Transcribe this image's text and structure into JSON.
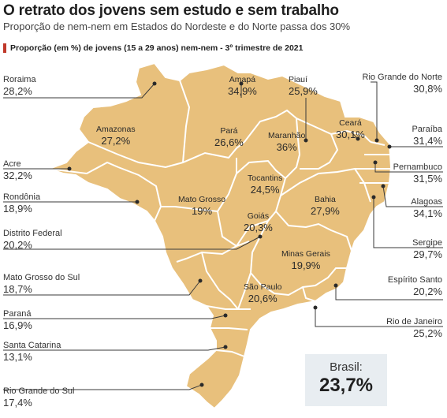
{
  "header": {
    "title": "O retrato dos jovens sem estudo e sem trabalho",
    "subtitle": "Proporção de nem-nem em Estados do Nordeste e do Norte passa dos 30%",
    "legend": "Proporção (em %) de jovens (15 a 29 anos) nem-nem - 3º trimestre de 2021"
  },
  "map": {
    "fill_color": "#e8c07c",
    "border_color": "#ffffff",
    "leader_color": "#3a3a3a",
    "states": {
      "roraima": {
        "name": "Roraima",
        "value": "28,2%"
      },
      "amapa": {
        "name": "Amapá",
        "value": "34,9%"
      },
      "piaui": {
        "name": "Piauí",
        "value": "25,9%"
      },
      "rio_grande_do_norte": {
        "name": "Rio Grande do Norte",
        "value": "30,8%"
      },
      "amazonas": {
        "name": "Amazonas",
        "value": "27,2%"
      },
      "para": {
        "name": "Pará",
        "value": "26,6%"
      },
      "maranhao": {
        "name": "Maranhão",
        "value": "36%"
      },
      "ceara": {
        "name": "Ceará",
        "value": "30,1%"
      },
      "paraiba": {
        "name": "Paraíba",
        "value": "31,4%"
      },
      "acre": {
        "name": "Acre",
        "value": "32,2%"
      },
      "tocantins": {
        "name": "Tocantins",
        "value": "24,5%"
      },
      "pernambuco": {
        "name": "Pernambuco",
        "value": "31,5%"
      },
      "rondonia": {
        "name": "Rondônia",
        "value": "18,9%"
      },
      "mato_grosso": {
        "name": "Mato Grosso",
        "value": "19%"
      },
      "bahia": {
        "name": "Bahia",
        "value": "27,9%"
      },
      "alagoas": {
        "name": "Alagoas",
        "value": "34,1%"
      },
      "goias": {
        "name": "Goiás",
        "value": "20,3%"
      },
      "distrito_federal": {
        "name": "Distrito Federal",
        "value": "20,2%"
      },
      "sergipe": {
        "name": "Sergipe",
        "value": "29,7%"
      },
      "minas_gerais": {
        "name": "Minas Gerais",
        "value": "19,9%"
      },
      "mato_grosso_do_sul": {
        "name": "Mato Grosso do Sul",
        "value": "18,7%"
      },
      "espirito_santo": {
        "name": "Espírito Santo",
        "value": "20,2%"
      },
      "sao_paulo": {
        "name": "São Paulo",
        "value": "20,6%"
      },
      "parana": {
        "name": "Paraná",
        "value": "16,9%"
      },
      "rio_de_janeiro": {
        "name": "Rio de Janeiro",
        "value": "25,2%"
      },
      "santa_catarina": {
        "name": "Santa Catarina",
        "value": "13,1%"
      },
      "rio_grande_do_sul": {
        "name": "Rio Grande do Sul",
        "value": "17,4%"
      }
    }
  },
  "total": {
    "label": "Brasil:",
    "value": "23,7%"
  }
}
